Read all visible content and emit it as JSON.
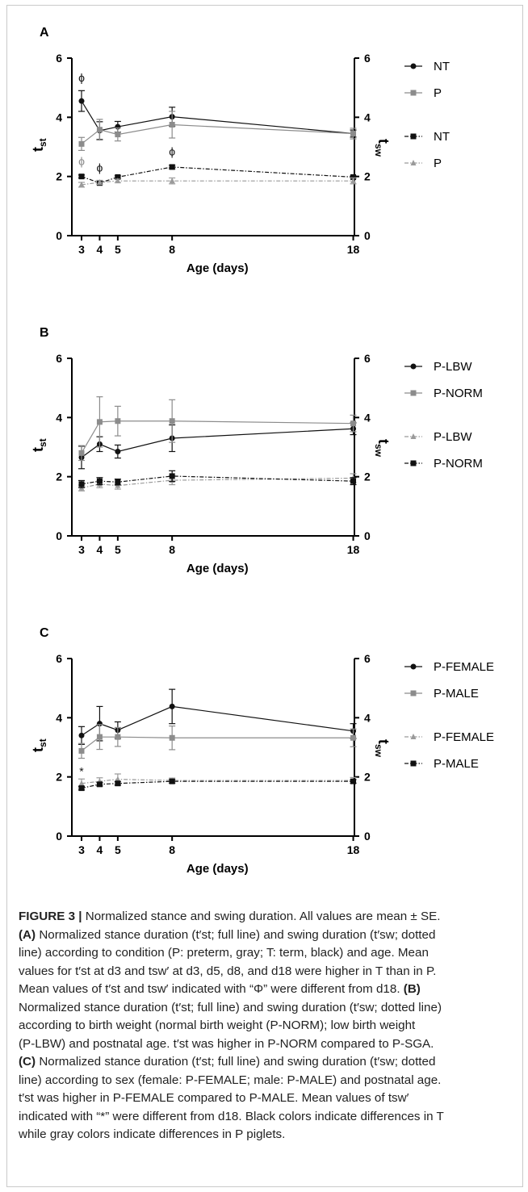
{
  "figure_title": "FIGURE 3",
  "caption": {
    "lines": [
      {
        "bold": "FIGURE 3 | ",
        "text": "Normalized stance and swing duration. All values are mean ± SE."
      },
      {
        "bold": "(A) ",
        "text": "Normalized stance duration (t′st; full line) and swing duration (t′sw; dotted"
      },
      {
        "bold": "",
        "text": "line) according to condition (P: preterm, gray; T: term, black) and age. Mean"
      },
      {
        "bold": "",
        "text": "values for t′st at d3 and tsw′ at d3, d5, d8, and d18 were higher in T than in P."
      },
      {
        "bold": "",
        "text": "Mean values of t′st and tsw′ indicated with “Φ” were different from d18. "
      },
      {
        "bold": "",
        "text": "Normalized stance duration (t′st; full line) and swing duration (t′sw; dotted line)"
      },
      {
        "bold": "",
        "text": "according to birth weight (normal birth weight (P-NORM); low birth weight"
      },
      {
        "bold": "",
        "text": "(P-LBW) and postnatal age. t′st was higher in P-NORM compared to P-SGA."
      },
      {
        "bold": "(C) ",
        "text": "Normalized stance duration (t′st; full line) and swing duration (t′sw; dotted"
      },
      {
        "bold": "",
        "text": "line) according to sex (female: P-FEMALE; male: P-MALE) and postnatal age."
      },
      {
        "bold": "",
        "text": "t′st was higher in P-FEMALE compared to P-MALE. Mean values of tsw′"
      },
      {
        "bold": "",
        "text": "indicated with “*” were different from d18. Black colors indicate differences in T"
      },
      {
        "bold": "",
        "text": "while gray colors indicate differences in P piglets."
      }
    ],
    "inline_bold_B": "(B)"
  },
  "chart_data": [
    {
      "type": "line",
      "panel_label": "A",
      "xlabel": "Age (days)",
      "ylabel_left": "tst",
      "ylabel_right": "tsw",
      "x": [
        3,
        4,
        5,
        8,
        18
      ],
      "xticks": [
        "3",
        "4",
        "5",
        "8",
        "18"
      ],
      "ylim": [
        0,
        6
      ],
      "yticks": [
        "0",
        "2",
        "4",
        "6"
      ],
      "legend_position": "right",
      "series": [
        {
          "name": "NT",
          "color": "#111111",
          "style": "solid",
          "marker": "circle",
          "values": [
            4.55,
            3.55,
            3.68,
            4.02,
            3.45
          ],
          "errors": [
            0.35,
            0.3,
            0.18,
            0.32,
            0.12
          ]
        },
        {
          "name": "P",
          "color": "#8c8c8c",
          "style": "solid",
          "marker": "square",
          "values": [
            3.1,
            3.58,
            3.42,
            3.75,
            3.45
          ],
          "errors": [
            0.22,
            0.35,
            0.22,
            0.45,
            0.18
          ]
        },
        {
          "name": "NT",
          "color": "#111111",
          "style": "dotted",
          "marker": "square",
          "values": [
            2.0,
            1.78,
            1.98,
            2.32,
            1.98
          ],
          "errors": [
            0.05,
            0.05,
            0.04,
            0.06,
            0.04
          ]
        },
        {
          "name": "P",
          "color": "#9a9a9a",
          "style": "dotted",
          "marker": "triangle",
          "values": [
            1.72,
            1.8,
            1.85,
            1.85,
            1.85
          ],
          "errors": [
            0.08,
            0.07,
            0.06,
            0.1,
            0.1
          ]
        }
      ],
      "annotations": [
        {
          "text": "ϕ",
          "x": 3,
          "y": 5.35,
          "color": "#111111"
        },
        {
          "text": "ϕ",
          "x": 4,
          "y": 2.3,
          "color": "#111111"
        },
        {
          "text": "ϕ",
          "x": 8,
          "y": 2.85,
          "color": "#111111"
        },
        {
          "text": "ϕ",
          "x": 3,
          "y": 2.52,
          "color": "#8c8c8c"
        }
      ]
    },
    {
      "type": "line",
      "panel_label": "B",
      "xlabel": "Age (days)",
      "ylabel_left": "tst",
      "ylabel_right": "tsw",
      "x": [
        3,
        4,
        5,
        8,
        18
      ],
      "xticks": [
        "3",
        "4",
        "5",
        "8",
        "18"
      ],
      "ylim": [
        0,
        6
      ],
      "yticks": [
        "0",
        "2",
        "4",
        "6"
      ],
      "legend_position": "right",
      "series": [
        {
          "name": "P-LBW",
          "color": "#111111",
          "style": "solid",
          "marker": "circle",
          "values": [
            2.65,
            3.1,
            2.85,
            3.3,
            3.62
          ],
          "errors": [
            0.38,
            0.25,
            0.22,
            0.45,
            0.2
          ]
        },
        {
          "name": "P-NORM",
          "color": "#8c8c8c",
          "style": "solid",
          "marker": "square",
          "values": [
            2.8,
            3.85,
            3.88,
            3.88,
            3.8
          ],
          "errors": [
            0.25,
            0.85,
            0.5,
            0.72,
            0.28
          ]
        },
        {
          "name": "P-LBW",
          "color": "#9a9a9a",
          "style": "dotted",
          "marker": "triangle",
          "values": [
            1.62,
            1.75,
            1.7,
            1.88,
            1.95
          ],
          "errors": [
            0.1,
            0.12,
            0.12,
            0.15,
            0.15
          ]
        },
        {
          "name": "P-NORM",
          "color": "#111111",
          "style": "dotted",
          "marker": "square",
          "values": [
            1.75,
            1.85,
            1.82,
            2.02,
            1.85
          ],
          "errors": [
            0.12,
            0.12,
            0.1,
            0.18,
            0.12
          ]
        }
      ],
      "annotations": []
    },
    {
      "type": "line",
      "panel_label": "C",
      "xlabel": "Age (days)",
      "ylabel_left": "tst",
      "ylabel_right": "tsw",
      "x": [
        3,
        4,
        5,
        8,
        18
      ],
      "xticks": [
        "3",
        "4",
        "5",
        "8",
        "18"
      ],
      "ylim": [
        0,
        6
      ],
      "yticks": [
        "0",
        "2",
        "4",
        "6"
      ],
      "legend_position": "right",
      "series": [
        {
          "name": "P-FEMALE",
          "color": "#111111",
          "style": "solid",
          "marker": "circle",
          "values": [
            3.4,
            3.8,
            3.58,
            4.38,
            3.55
          ],
          "errors": [
            0.3,
            0.58,
            0.28,
            0.58,
            0.25
          ]
        },
        {
          "name": "P-MALE",
          "color": "#8c8c8c",
          "style": "solid",
          "marker": "square",
          "values": [
            2.88,
            3.35,
            3.35,
            3.32,
            3.32
          ],
          "errors": [
            0.25,
            0.42,
            0.32,
            0.4,
            0.3
          ]
        },
        {
          "name": "P-FEMALE",
          "color": "#9a9a9a",
          "style": "dotted",
          "marker": "triangle",
          "values": [
            1.78,
            1.85,
            1.92,
            1.88,
            1.88
          ],
          "errors": [
            0.15,
            0.12,
            0.18,
            0.08,
            0.1
          ]
        },
        {
          "name": "P-MALE",
          "color": "#111111",
          "style": "dotted",
          "marker": "square",
          "values": [
            1.62,
            1.75,
            1.78,
            1.85,
            1.85
          ],
          "errors": [
            0.06,
            0.06,
            0.06,
            0.06,
            0.06
          ]
        }
      ],
      "annotations": [
        {
          "text": "*",
          "x": 3,
          "y": 2.2,
          "color": "#111111"
        }
      ]
    }
  ]
}
